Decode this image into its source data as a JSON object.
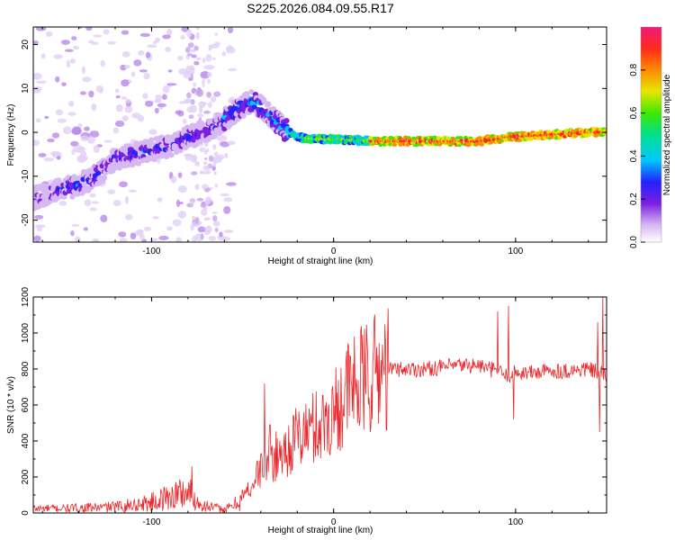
{
  "title": "S225.2026.084.09.55.R17",
  "chart_data": [
    {
      "type": "heatmap",
      "title": "S225.2026.084.09.55.R17",
      "xlabel": "Height of straight line (km)",
      "ylabel": "Frequency (Hz)",
      "xlim": [
        -165,
        150
      ],
      "ylim": [
        -25,
        24
      ],
      "xticks": [
        -100,
        0,
        100
      ],
      "yticks": [
        -20,
        -10,
        0,
        10,
        20
      ],
      "ridge_x": [
        -165,
        -150,
        -140,
        -130,
        -120,
        -110,
        -100,
        -90,
        -80,
        -70,
        -60,
        -50,
        -45,
        -40,
        -35,
        -30,
        -25,
        -20,
        -10,
        0,
        20,
        40,
        60,
        80,
        90,
        95,
        100,
        120,
        140,
        150
      ],
      "ridge_freq": [
        -15,
        -13,
        -12,
        -10,
        -6,
        -5,
        -4,
        -3,
        -1,
        0,
        3,
        6,
        7,
        6,
        4,
        2,
        0,
        -1,
        -1.5,
        -1.5,
        -2,
        -2,
        -2,
        -2,
        -1.5,
        -1,
        -1,
        -0.5,
        0,
        0
      ],
      "colorbar": {
        "label": "Normalized spectral amplitude",
        "ticks": [
          0.0,
          0.2,
          0.4,
          0.6,
          0.8
        ],
        "range": [
          0,
          1
        ]
      }
    },
    {
      "type": "line",
      "xlabel": "Height of straight line (km)",
      "ylabel": "SNR (10 * v/v)",
      "xlim": [
        -165,
        150
      ],
      "ylim": [
        0,
        1200
      ],
      "xticks": [
        -100,
        0,
        100
      ],
      "yticks": [
        0,
        200,
        400,
        600,
        800,
        1000,
        1200
      ],
      "color": "#e8272b",
      "series": [
        {
          "name": "SNR",
          "x": [
            -165,
            -150,
            -140,
            -130,
            -120,
            -110,
            -100,
            -90,
            -85,
            -80,
            -75,
            -70,
            -65,
            -60,
            -55,
            -50,
            -45,
            -40,
            -35,
            -30,
            -25,
            -20,
            -15,
            -10,
            -5,
            0,
            5,
            10,
            15,
            20,
            25,
            30,
            40,
            50,
            60,
            70,
            80,
            85,
            90,
            95,
            100,
            110,
            120,
            130,
            140,
            145,
            150
          ],
          "y": [
            25,
            25,
            28,
            30,
            35,
            45,
            60,
            90,
            110,
            120,
            60,
            40,
            30,
            20,
            40,
            90,
            150,
            250,
            300,
            320,
            360,
            420,
            450,
            480,
            500,
            560,
            640,
            700,
            720,
            760,
            790,
            800,
            800,
            800,
            810,
            820,
            820,
            800,
            790,
            760,
            780,
            780,
            790,
            790,
            800,
            780,
            760
          ]
        }
      ],
      "spikes": [
        {
          "x": 96,
          "y": 1150
        },
        {
          "x": 90,
          "y": 1120
        },
        {
          "x": 148,
          "y": 1210
        },
        {
          "x": 145,
          "y": 1060
        },
        {
          "x": -38,
          "y": 720
        },
        {
          "x": -35,
          "y": 490
        },
        {
          "x": -78,
          "y": 260
        },
        {
          "x": 99,
          "y": 520
        },
        {
          "x": 146,
          "y": 450
        }
      ]
    }
  ]
}
